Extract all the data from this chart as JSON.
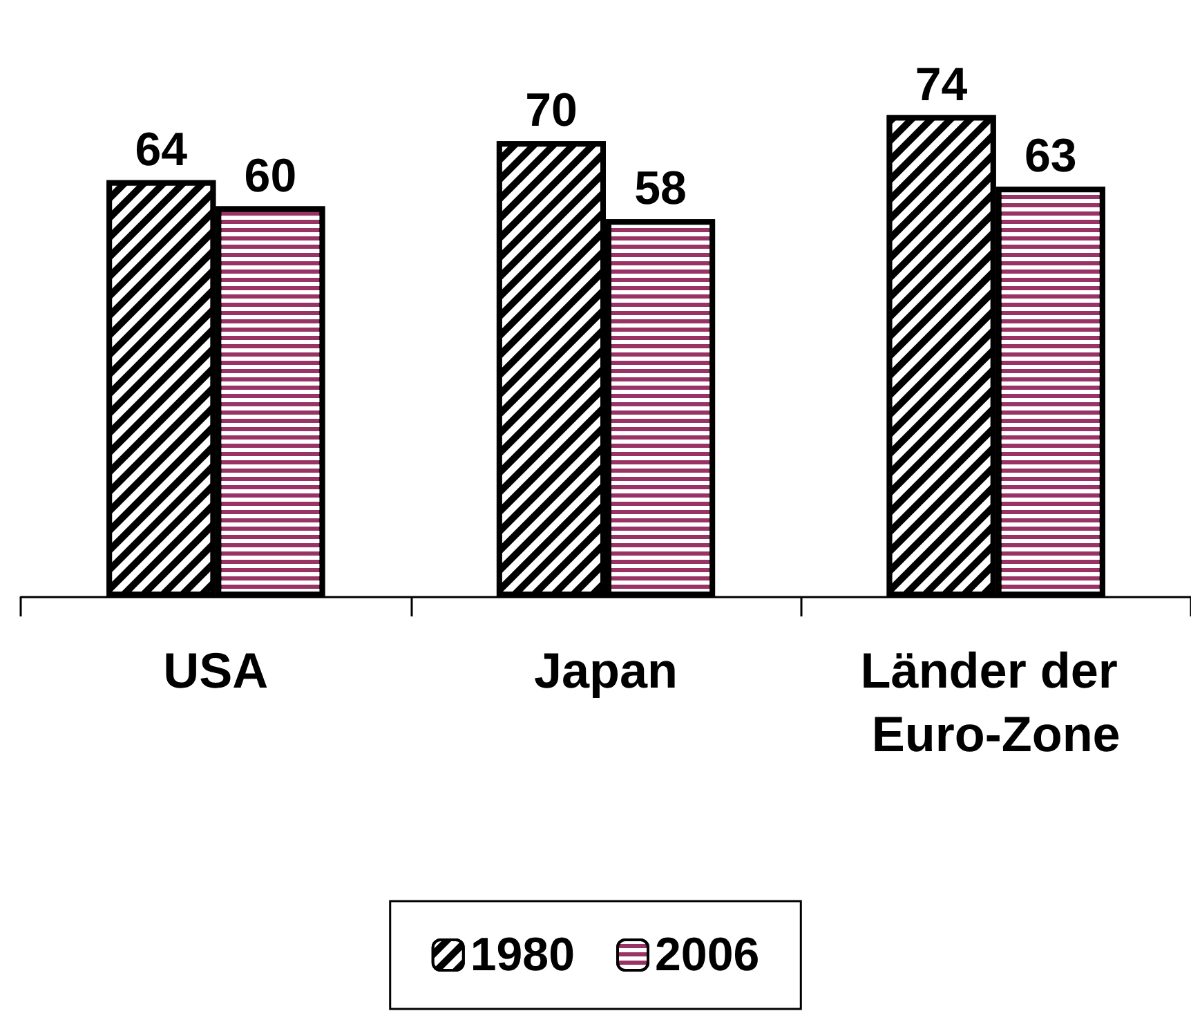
{
  "chart_data": {
    "type": "bar",
    "categories": [
      "USA",
      "Japan",
      "Länder der Euro-Zone"
    ],
    "series": [
      {
        "name": "1980",
        "color": "#000000",
        "values": [
          64,
          70,
          74
        ]
      },
      {
        "name": "2006",
        "color": "#993366",
        "values": [
          60,
          58,
          63
        ]
      }
    ],
    "data_labels": true,
    "legend": "bottom",
    "grid": false
  }
}
